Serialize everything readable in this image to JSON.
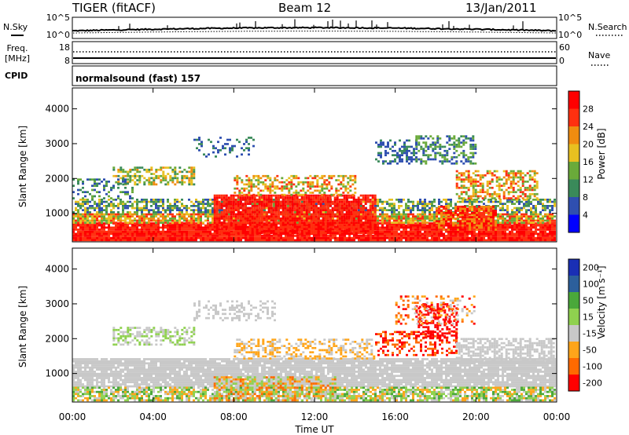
{
  "header": {
    "station": "TIGER (fitACF)",
    "beam": "Beam 12",
    "date": "13/Jan/2011"
  },
  "strip": {
    "nsky_label": "N.Sky",
    "nsearch_label": "N.Search",
    "noise_ticks_left": [
      "10^5",
      "10^0"
    ],
    "noise_ticks_right": [
      "10^5",
      "10^0"
    ],
    "freq_label_1": "Freq.",
    "freq_label_2": "[MHz]",
    "freq_ticks": [
      "18",
      "8"
    ],
    "nave_label": "Nave",
    "nave_ticks": [
      "60",
      "0"
    ],
    "cpid_label": "CPID",
    "cpid_value": "normalsound (fast) 157"
  },
  "colors": {
    "power": [
      "#0000ff",
      "#2f4fb0",
      "#3a8a5a",
      "#6aaa3a",
      "#e8c020",
      "#f08c10",
      "#ff3010",
      "#ff0000"
    ],
    "velocity": [
      "#ff0000",
      "#ff6a00",
      "#ffa51a",
      "#c8c8c8",
      "#8fd14f",
      "#4aa83a",
      "#2c5f9c",
      "#1a2fb5"
    ]
  },
  "chart_data": [
    {
      "type": "heatmap",
      "title": "Power",
      "ylabel": "Slant Range [km]",
      "y_ticks": [
        "1000",
        "2000",
        "3000",
        "4000"
      ],
      "ylim": [
        180,
        4600
      ],
      "colorbar_label": "Power [dB]",
      "colorbar_ticks": [
        "4",
        "8",
        "12",
        "16",
        "20",
        "24",
        "28"
      ]
    },
    {
      "type": "heatmap",
      "title": "Velocity",
      "ylabel": "Slant Range [km]",
      "y_ticks": [
        "1000",
        "2000",
        "3000",
        "4000"
      ],
      "ylim": [
        180,
        4600
      ],
      "colorbar_label": "Velocity [m s⁻¹]",
      "colorbar_ticks": [
        "200",
        "100",
        "50",
        "15",
        "-15",
        "-50",
        "-100",
        "-200"
      ],
      "xlabel": "Time UT",
      "x_ticks": [
        "00:00",
        "04:00",
        "08:00",
        "12:00",
        "16:00",
        "20:00",
        "00:00"
      ]
    }
  ]
}
